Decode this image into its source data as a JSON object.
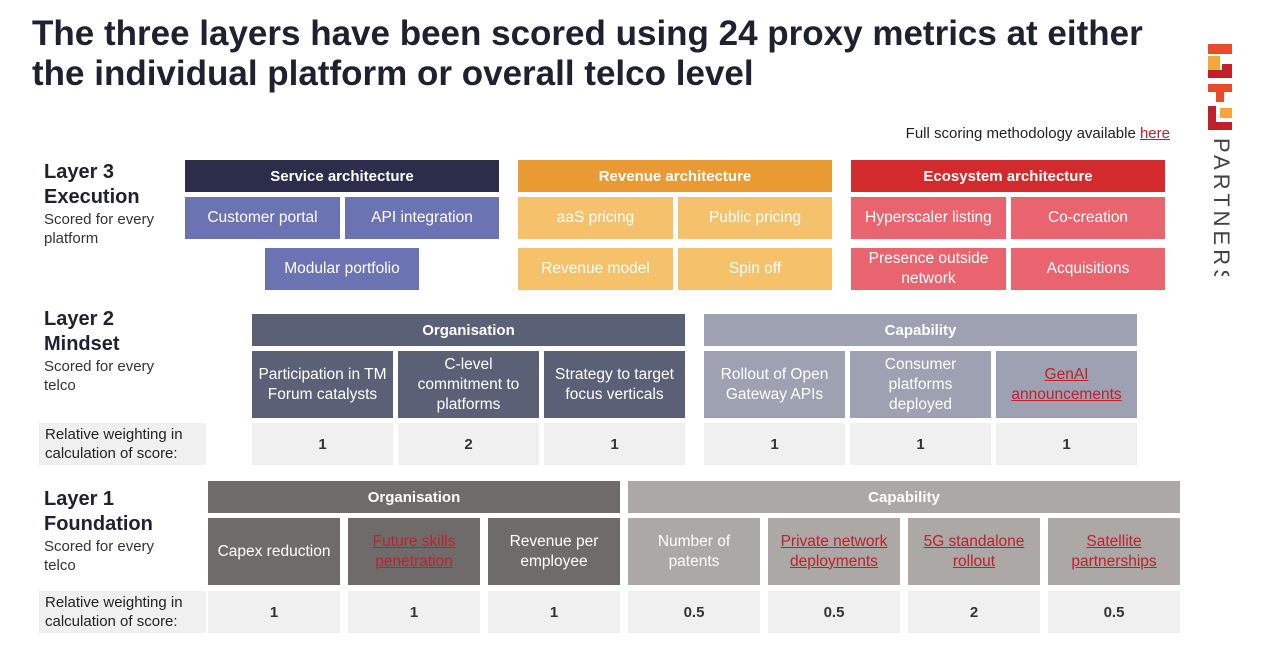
{
  "title": "The three layers have been scored using 24 proxy metrics at either the individual platform or overall telco level",
  "methodology": {
    "text": "Full scoring methodology available ",
    "link": "here"
  },
  "brand": {
    "name": "PARTNERS",
    "colors": [
      "#e84a2a",
      "#f4a83a",
      "#c0202a",
      "#1f2030"
    ]
  },
  "layer3": {
    "title_line1": "Layer 3",
    "title_line2": "Execution",
    "sub_line1": "Scored for every",
    "sub_line2": "platform",
    "groups": {
      "service": {
        "label": "Service architecture",
        "color": "#2b2d4a",
        "items": [
          "Customer portal",
          "API integration",
          "Modular portfolio"
        ],
        "item_color": "#6b73b2"
      },
      "revenue": {
        "label": "Revenue architecture",
        "color": "#ea9a32",
        "items": [
          "aaS pricing",
          "Public pricing",
          "Revenue model",
          "Spin off"
        ],
        "item_color": "#f5c26b"
      },
      "ecosystem": {
        "label": "Ecosystem architecture",
        "color": "#d22a2d",
        "items": [
          "Hyperscaler listing",
          "Co-creation",
          "Presence outside network",
          "Acquisitions"
        ],
        "item_color": "#ea6470"
      }
    }
  },
  "layer2": {
    "title_line1": "Layer 2",
    "title_line2": "Mindset",
    "sub_line1": "Scored for every",
    "sub_line2": "telco",
    "groups": {
      "organisation": {
        "label": "Organisation",
        "color": "#5a6075",
        "items": [
          "Participation in TM Forum catalysts",
          "C-level commitment to platforms",
          "Strategy to target focus verticals"
        ],
        "weights": [
          "1",
          "2",
          "1"
        ]
      },
      "capability": {
        "label": "Capability",
        "color": "#9da1b2",
        "items": [
          "Rollout of Open Gateway APIs",
          "Consumer platforms deployed",
          "GenAI announcements"
        ],
        "weights": [
          "1",
          "1",
          "1"
        ]
      }
    }
  },
  "layer1": {
    "title_line1": "Layer 1",
    "title_line2": "Foundation",
    "sub_line1": "Scored for every",
    "sub_line2": "telco",
    "groups": {
      "organisation": {
        "label": "Organisation",
        "color": "#6f6b6a",
        "items": [
          "Capex reduction",
          "Future skills penetration",
          "Revenue per employee"
        ],
        "weights": [
          "1",
          "1",
          "1"
        ]
      },
      "capability": {
        "label": "Capability",
        "color": "#aba8a6",
        "items": [
          "Number of patents",
          "Private network deployments",
          "5G standalone rollout",
          "Satellite partnerships"
        ],
        "weights": [
          "0.5",
          "0.5",
          "2",
          "0.5"
        ]
      }
    }
  },
  "weight_label_line1": "Relative weighting in",
  "weight_label_line2": "calculation of score:"
}
